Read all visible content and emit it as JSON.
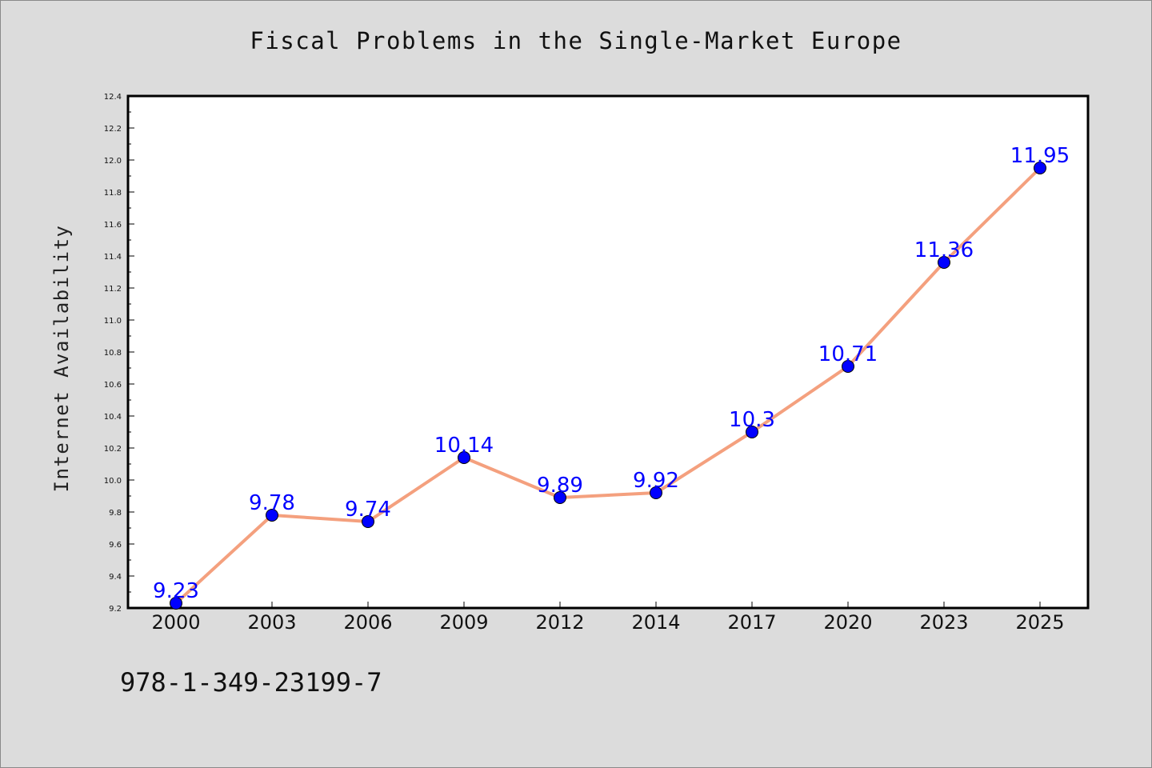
{
  "chart_data": {
    "type": "line",
    "title": "Fiscal Problems in the Single-Market Europe",
    "xlabel": "",
    "ylabel": "Internet Availability",
    "categories": [
      "2000",
      "2003",
      "2006",
      "2009",
      "2012",
      "2014",
      "2017",
      "2020",
      "2023",
      "2025"
    ],
    "series": [
      {
        "values": [
          9.23,
          9.78,
          9.74,
          10.14,
          9.89,
          9.92,
          10.3,
          10.71,
          11.36,
          11.95
        ]
      }
    ],
    "data_labels": [
      "9.23",
      "9.78",
      "9.74",
      "10.14",
      "9.89",
      "9.92",
      "10.3",
      "10.71",
      "11.36",
      "11.95"
    ],
    "ylim": [
      9.2,
      12.4
    ],
    "yticks": [
      "9.2",
      "9.4",
      "9.6",
      "9.8",
      "10.0",
      "10.2",
      "10.4",
      "10.6",
      "10.8",
      "11.0",
      "11.2",
      "11.4",
      "11.6",
      "11.8",
      "12.0",
      "12.2",
      "12.4"
    ],
    "grid": false,
    "legend": "none",
    "colors": {
      "line": "#f4a07e",
      "marker": "#0000ff",
      "data_label": "#0000ff",
      "plot_background": "#ffffff",
      "figure_background": "#dcdcdc"
    }
  },
  "footer": {
    "isbn": "978-1-349-23199-7"
  }
}
